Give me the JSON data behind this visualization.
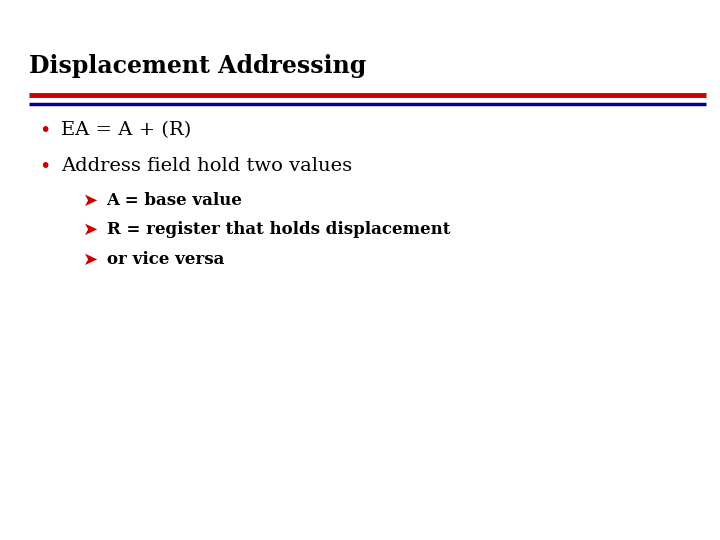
{
  "title": "Displacement Addressing",
  "title_color": "#000000",
  "title_fontsize": 17,
  "title_bold": true,
  "bg_color": "#ffffff",
  "line1_color": "#cc0000",
  "line2_color": "#000099",
  "bullet_color": "#cc0000",
  "bullet1": "EA = A + (R)",
  "bullet2": "Address field hold two values",
  "bullet_fontsize": 14,
  "sub_bullet_color": "#cc0000",
  "sub_bullets": [
    "A = base value",
    "R = register that holds displacement",
    "or vice versa"
  ],
  "sub_bullet_fontsize": 12,
  "figwidth": 7.2,
  "figheight": 5.4,
  "dpi": 100
}
